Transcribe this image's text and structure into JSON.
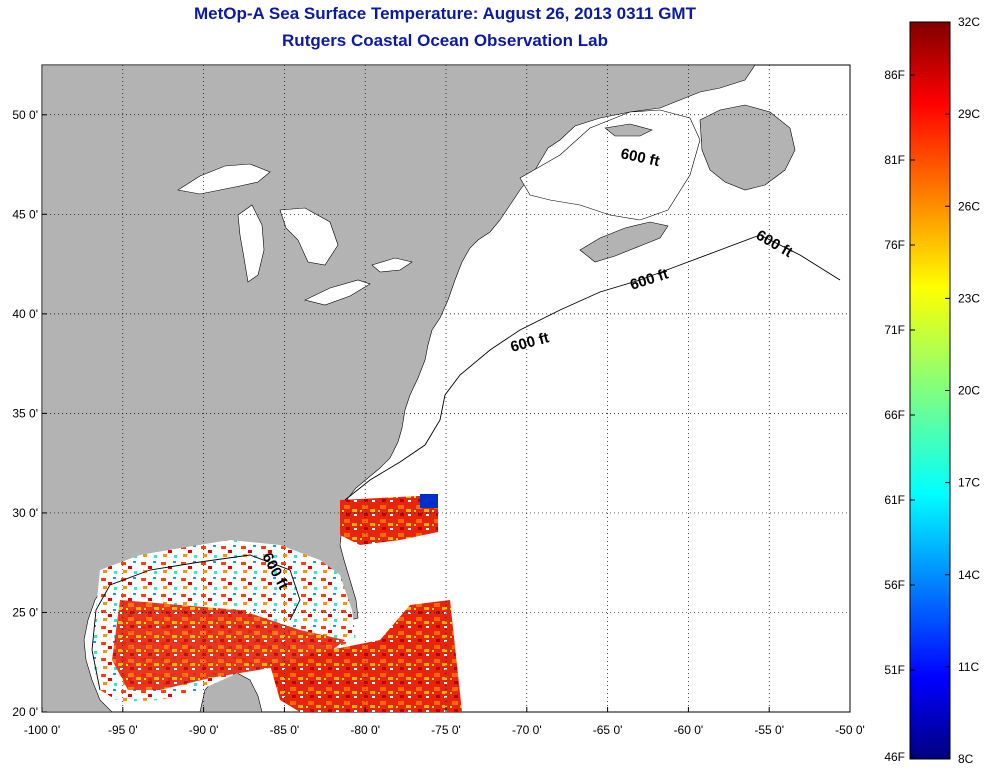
{
  "title": "MetOp-A Sea Surface Temperature:  August 26, 2013 0311 GMT",
  "subtitle": "Rutgers Coastal Ocean Observation Lab",
  "map": {
    "lon_range": [
      -100,
      -50
    ],
    "lat_range": [
      20,
      52.5
    ],
    "x_ticks": [
      "-100 0'",
      "-95 0'",
      "-90 0'",
      "-85 0'",
      "-80 0'",
      "-75 0'",
      "-70 0'",
      "-65 0'",
      "-60 0'",
      "-55 0'",
      "-50 0'"
    ],
    "y_ticks": [
      "20 0'",
      "25 0'",
      "30 0'",
      "35 0'",
      "40 0'",
      "45 0'",
      "50 0'"
    ],
    "grid": "dotted",
    "contour_label": "600 ft",
    "land_color": "#b3b3b3",
    "no_data_color": "#ffffff"
  },
  "colorbar": {
    "celsius_labels": [
      "32C",
      "29C",
      "26C",
      "23C",
      "20C",
      "17C",
      "14C",
      "11C",
      "8C"
    ],
    "fahrenheit_labels": [
      "86F",
      "81F",
      "76F",
      "71F",
      "66F",
      "61F",
      "56F",
      "51F",
      "46F"
    ],
    "range_c": [
      8,
      32
    ],
    "colormap": "jet"
  }
}
